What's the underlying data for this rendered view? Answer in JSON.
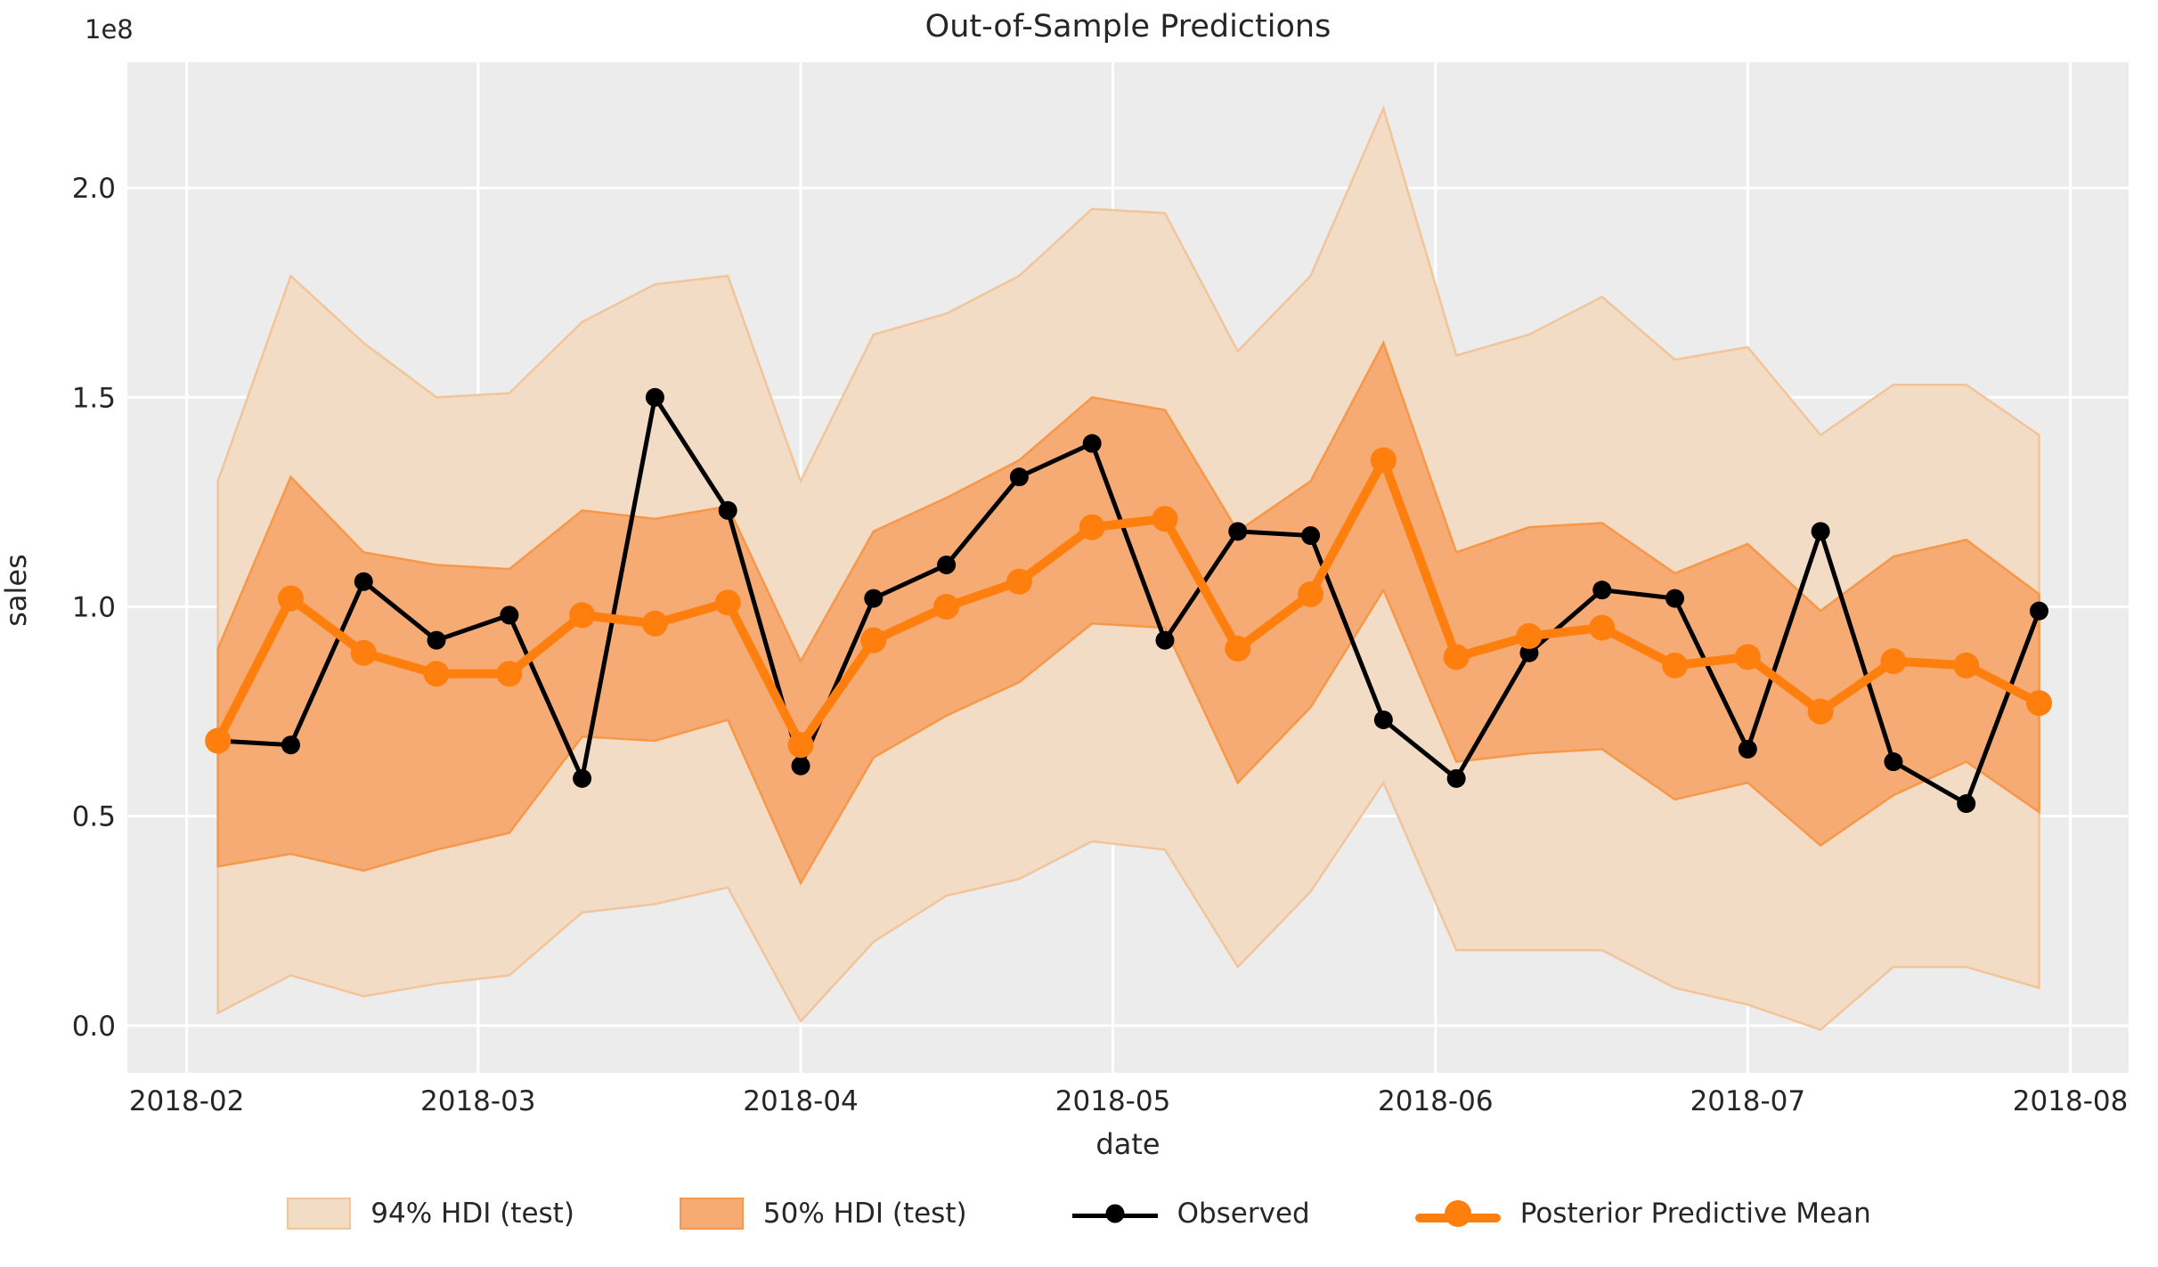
{
  "colors": {
    "background": "#ffffff",
    "axes_background": "#ececec",
    "grid": "#ffffff",
    "hdi94_fill": "#f3dcc6",
    "hdi94_edge": "#f2c49a",
    "hdi50_fill": "#f5ab73",
    "hdi50_edge": "#f79748",
    "observed": "#000000",
    "posterior_mean": "#ff7f0e",
    "text": "#262626"
  },
  "chart_data": {
    "type": "line",
    "title": "Out-of-Sample Predictions",
    "xlabel": "date",
    "ylabel": "sales",
    "offset_label": "1e8",
    "grid": true,
    "legend_position": "bottom-center",
    "xlim_days": [
      -5.7,
      186.6
    ],
    "ylim": [
      -0.113,
      2.3
    ],
    "x_ticks": [
      {
        "label": "2018-02",
        "day": 0
      },
      {
        "label": "2018-03",
        "day": 28
      },
      {
        "label": "2018-04",
        "day": 59
      },
      {
        "label": "2018-05",
        "day": 89
      },
      {
        "label": "2018-06",
        "day": 120
      },
      {
        "label": "2018-07",
        "day": 150
      },
      {
        "label": "2018-08",
        "day": 181
      }
    ],
    "y_ticks": [
      {
        "label": "0.0",
        "value": 0.0
      },
      {
        "label": "0.5",
        "value": 0.5
      },
      {
        "label": "1.0",
        "value": 1.0
      },
      {
        "label": "1.5",
        "value": 1.5
      },
      {
        "label": "2.0",
        "value": 2.0
      }
    ],
    "y_unit": "1e8",
    "dates": [
      "2018-02-04",
      "2018-02-11",
      "2018-02-18",
      "2018-02-25",
      "2018-03-04",
      "2018-03-11",
      "2018-03-18",
      "2018-03-25",
      "2018-04-01",
      "2018-04-08",
      "2018-04-15",
      "2018-04-22",
      "2018-04-29",
      "2018-05-06",
      "2018-05-13",
      "2018-05-20",
      "2018-05-27",
      "2018-06-03",
      "2018-06-10",
      "2018-06-17",
      "2018-06-24",
      "2018-07-01",
      "2018-07-08",
      "2018-07-15",
      "2018-07-22",
      "2018-07-29"
    ],
    "day_offsets": [
      3,
      10,
      17,
      24,
      31,
      38,
      45,
      52,
      59,
      66,
      73,
      80,
      87,
      94,
      101,
      108,
      115,
      122,
      129,
      136,
      143,
      150,
      157,
      164,
      171,
      178
    ],
    "series": [
      {
        "name": "Observed",
        "values": [
          0.68,
          0.67,
          1.06,
          0.92,
          0.98,
          0.59,
          1.5,
          1.23,
          0.62,
          1.02,
          1.1,
          1.31,
          1.39,
          0.92,
          1.18,
          1.17,
          0.73,
          0.59,
          0.89,
          1.04,
          1.02,
          0.66,
          1.18,
          0.63,
          0.53,
          0.99
        ]
      },
      {
        "name": "Posterior Predictive Mean",
        "values": [
          0.68,
          1.02,
          0.89,
          0.84,
          0.84,
          0.98,
          0.96,
          1.01,
          0.67,
          0.92,
          1.0,
          1.06,
          1.19,
          1.21,
          0.9,
          1.03,
          1.35,
          0.88,
          0.93,
          0.95,
          0.86,
          0.88,
          0.75,
          0.87,
          0.86,
          0.77
        ]
      }
    ],
    "hdi50": {
      "upper": [
        0.9,
        1.31,
        1.13,
        1.1,
        1.09,
        1.23,
        1.21,
        1.24,
        0.87,
        1.18,
        1.26,
        1.35,
        1.5,
        1.47,
        1.18,
        1.3,
        1.63,
        1.13,
        1.19,
        1.2,
        1.08,
        1.15,
        0.99,
        1.12,
        1.16,
        1.03
      ],
      "lower": [
        0.38,
        0.41,
        0.37,
        0.42,
        0.46,
        0.69,
        0.68,
        0.73,
        0.34,
        0.64,
        0.74,
        0.82,
        0.96,
        0.95,
        0.58,
        0.76,
        1.04,
        0.63,
        0.65,
        0.66,
        0.54,
        0.58,
        0.43,
        0.55,
        0.63,
        0.51
      ]
    },
    "hdi94": {
      "upper": [
        1.3,
        1.79,
        1.63,
        1.5,
        1.51,
        1.68,
        1.77,
        1.79,
        1.3,
        1.65,
        1.7,
        1.79,
        1.95,
        1.94,
        1.61,
        1.79,
        2.19,
        1.6,
        1.65,
        1.74,
        1.59,
        1.62,
        1.41,
        1.53,
        1.53,
        1.41
      ],
      "lower": [
        0.03,
        0.12,
        0.07,
        0.1,
        0.12,
        0.27,
        0.29,
        0.33,
        0.01,
        0.2,
        0.31,
        0.35,
        0.44,
        0.42,
        0.14,
        0.32,
        0.58,
        0.18,
        0.18,
        0.18,
        0.09,
        0.05,
        -0.01,
        0.14,
        0.14,
        0.09
      ]
    },
    "legend": [
      {
        "label": "94% HDI (test)",
        "type": "patch"
      },
      {
        "label": "50% HDI (test)",
        "type": "patch"
      },
      {
        "label": "Observed",
        "type": "line"
      },
      {
        "label": "Posterior Predictive Mean",
        "type": "line"
      }
    ]
  }
}
